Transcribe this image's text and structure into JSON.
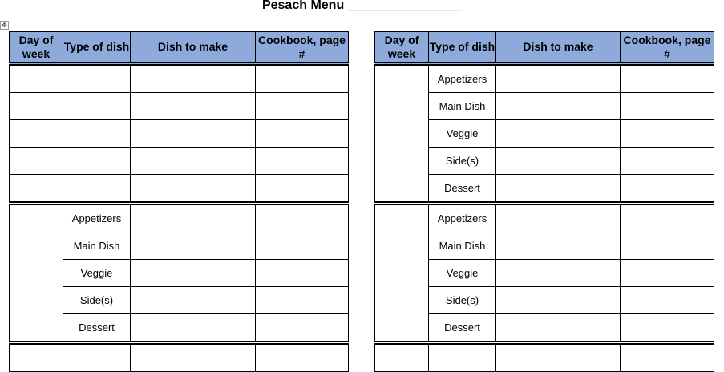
{
  "title": "Pesach Menu",
  "title_blank": "________________",
  "headers": [
    "Day of week",
    "Type of dish",
    "Dish to make",
    "Cookbook, page #"
  ],
  "dish_types": [
    "Appetizers",
    "Main Dish",
    "Veggie",
    "Side(s)",
    "Dessert"
  ],
  "colors": {
    "header_fill": "#8eaadb",
    "border": "#000000"
  },
  "left_table": {
    "blocks": [
      "blank",
      "typed",
      "partial"
    ]
  },
  "right_table": {
    "blocks": [
      "typed",
      "typed",
      "partial"
    ]
  }
}
